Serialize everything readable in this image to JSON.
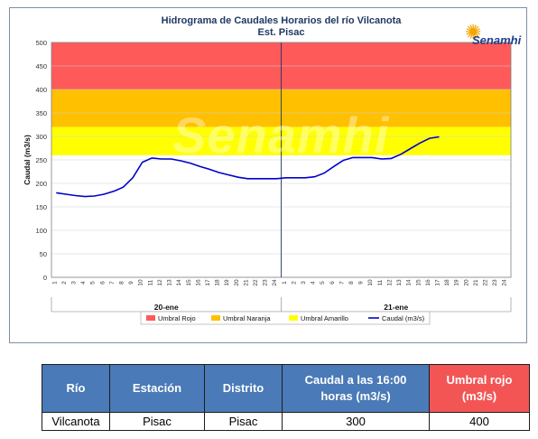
{
  "chart_data": {
    "type": "line",
    "title": "Hidrograma de Caudales Horarios del río Vilcanota",
    "subtitle": "Est. Pisac",
    "ylabel": "Caudal  (m3/s)",
    "ylim": [
      0,
      500
    ],
    "yticks": [
      "0",
      "50",
      "100",
      "150",
      "200",
      "250",
      "300",
      "350",
      "400",
      "450",
      "500"
    ],
    "days": [
      {
        "label": "20-ene",
        "hours": [
          "1",
          "2",
          "3",
          "4",
          "5",
          "6",
          "7",
          "8",
          "9",
          "10",
          "11",
          "12",
          "13",
          "14",
          "15",
          "16",
          "17",
          "18",
          "19",
          "20",
          "21",
          "22",
          "23",
          "24"
        ]
      },
      {
        "label": "21-ene",
        "hours": [
          "1",
          "2",
          "3",
          "4",
          "5",
          "6",
          "7",
          "8",
          "9",
          "10",
          "11",
          "12",
          "13",
          "14",
          "15",
          "16",
          "17",
          "18",
          "19",
          "20",
          "21",
          "22",
          "23",
          "24"
        ]
      }
    ],
    "bands": [
      {
        "name": "Umbral Rojo",
        "from": 400,
        "to": 500,
        "color": "#ff5a5a"
      },
      {
        "name": "Umbral Naranja",
        "from": 320,
        "to": 400,
        "color": "#ffc000"
      },
      {
        "name": "Umbral Amarillo",
        "from": 260,
        "to": 320,
        "color": "#ffff00"
      }
    ],
    "series": [
      {
        "name": "Caudal (m3/s)",
        "color": "#0000cc",
        "values": [
          180,
          177,
          174,
          172,
          173,
          177,
          183,
          192,
          212,
          245,
          254,
          252,
          252,
          248,
          243,
          236,
          230,
          223,
          218,
          213,
          210,
          210,
          210,
          210,
          212,
          212,
          212,
          214,
          222,
          236,
          249,
          255,
          255,
          255,
          252,
          253,
          262,
          274,
          286,
          296,
          299
        ]
      }
    ],
    "legend": [
      "Umbral Rojo",
      "Umbral Naranja",
      "Umbral Amarillo",
      "Caudal (m3/s)"
    ],
    "watermark": "Senamhi"
  },
  "logo": {
    "text": "Senamhi"
  },
  "table": {
    "headers": [
      "Río",
      "Estación",
      "Distrito",
      "Caudal a las 16:00 horas (m3/s)",
      "Umbral rojo (m3/s)"
    ],
    "rows": [
      [
        "Vilcanota",
        "Pisac",
        "Pisac",
        "300",
        "400"
      ]
    ]
  }
}
